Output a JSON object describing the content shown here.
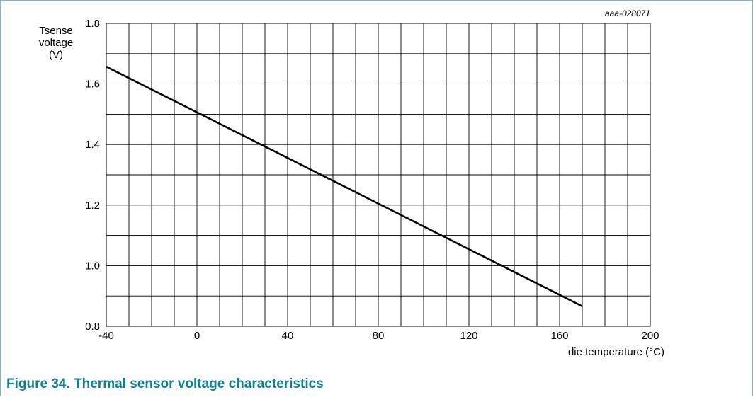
{
  "figure": {
    "caption": "Figure 34.  Thermal sensor voltage characteristics",
    "ref_id": "aaa-028071",
    "caption_color": "#0f7f98",
    "frame_color": "#8fb3b3"
  },
  "chart_data": {
    "type": "line",
    "title": "",
    "xlabel": "die temperature (°C)",
    "ylabel_lines": [
      "Tsense",
      "voltage",
      "(V)"
    ],
    "xlim": [
      -40,
      200
    ],
    "ylim": [
      0.8,
      1.8
    ],
    "x_ticks": [
      -40,
      0,
      40,
      80,
      120,
      160,
      200
    ],
    "x_tick_labels": [
      "-40",
      "0",
      "40",
      "80",
      "120",
      "160",
      "200"
    ],
    "y_ticks": [
      0.8,
      1.0,
      1.2,
      1.4,
      1.6,
      1.8
    ],
    "y_tick_labels": [
      "0.8",
      "1.0",
      "1.2",
      "1.4",
      "1.6",
      "1.8"
    ],
    "x_minor_step": 10,
    "y_minor_step": 0.1,
    "grid": true,
    "line_color": "#000000",
    "series": [
      {
        "x": [
          -40,
          170
        ],
        "y": [
          1.657,
          0.866
        ]
      }
    ]
  }
}
